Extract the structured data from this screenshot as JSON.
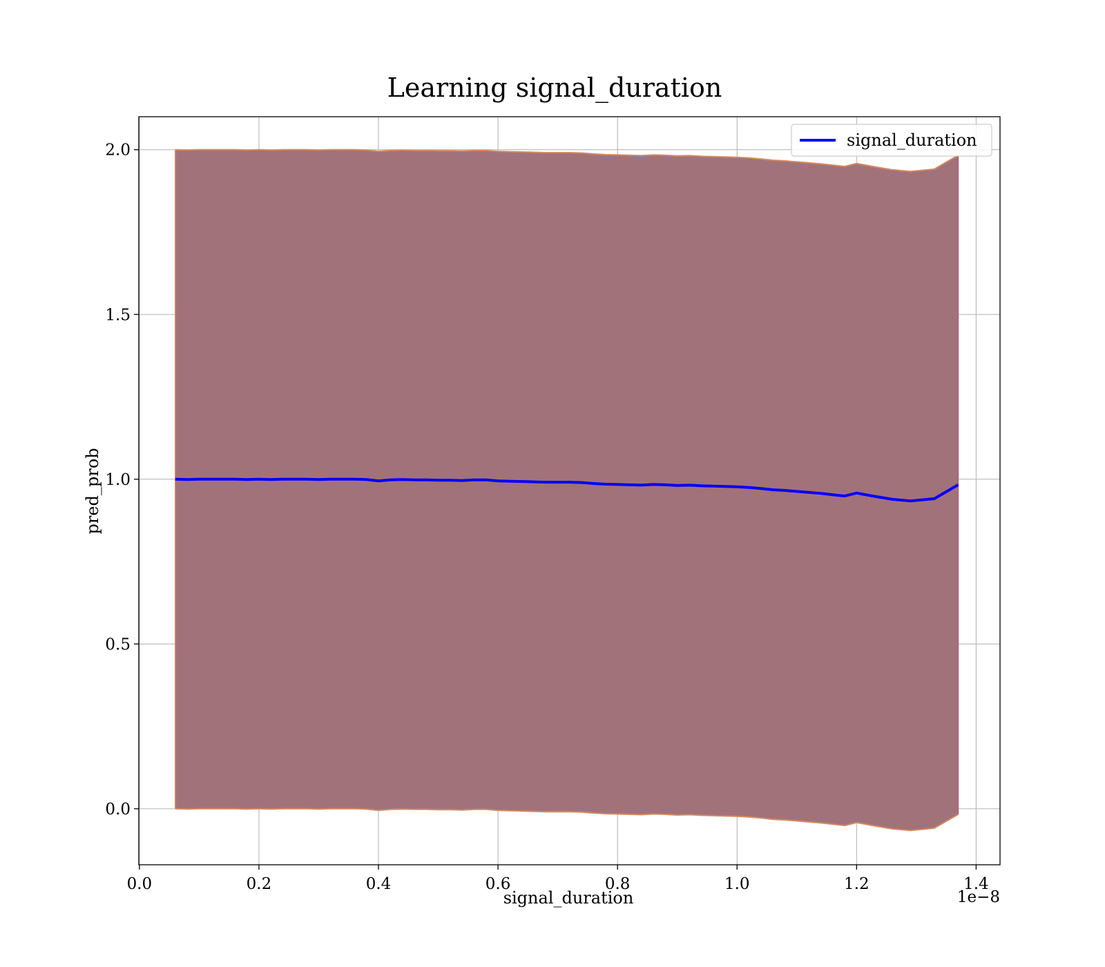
{
  "chart_data": {
    "type": "line",
    "title": "Learning signal_duration",
    "xlabel": "signal_duration",
    "ylabel": "pred_prob",
    "x_offset_label": "1e−8",
    "xlim": [
      -1e-11,
      1.44e-08
    ],
    "ylim": [
      -0.17,
      2.1
    ],
    "x_ticks": [
      0.0,
      0.2,
      0.4,
      0.6,
      0.8,
      1.0,
      1.2,
      1.4
    ],
    "x_tick_labels": [
      "0.0",
      "0.2",
      "0.4",
      "0.6",
      "0.8",
      "1.0",
      "1.2",
      "1.4"
    ],
    "y_ticks": [
      0.0,
      0.5,
      1.0,
      1.5,
      2.0
    ],
    "y_tick_labels": [
      "0.0",
      "0.5",
      "1.0",
      "1.5",
      "2.0"
    ],
    "grid": true,
    "legend_position": "top-right",
    "colors": {
      "line": "#0000ff",
      "band_fill": "#a2727a",
      "band_edge": "#d28a63",
      "grid": "#b0b0b0"
    },
    "series": [
      {
        "name": "signal_duration",
        "x": [
          6e-10,
          8e-10,
          1e-09,
          1.2e-09,
          1.4e-09,
          1.6e-09,
          1.8e-09,
          2e-09,
          2.2e-09,
          2.4e-09,
          2.6e-09,
          2.8e-09,
          3e-09,
          3.2e-09,
          3.4e-09,
          3.6e-09,
          3.8e-09,
          4e-09,
          4.2e-09,
          4.4e-09,
          4.6e-09,
          4.8e-09,
          5e-09,
          5.2e-09,
          5.4e-09,
          5.6e-09,
          5.8e-09,
          6e-09,
          6.2e-09,
          6.4e-09,
          6.6e-09,
          6.8e-09,
          7e-09,
          7.2e-09,
          7.4e-09,
          7.6e-09,
          7.8e-09,
          8e-09,
          8.2e-09,
          8.4e-09,
          8.6e-09,
          8.8e-09,
          9e-09,
          9.2e-09,
          9.4e-09,
          9.6e-09,
          9.8e-09,
          1e-08,
          1.02e-08,
          1.04e-08,
          1.06e-08,
          1.08e-08,
          1.1e-08,
          1.12e-08,
          1.14e-08,
          1.16e-08,
          1.18e-08,
          1.2e-08,
          1.23e-08,
          1.26e-08,
          1.29e-08,
          1.33e-08,
          1.37e-08
        ],
        "y": [
          1.0,
          0.999,
          1.0,
          1.0,
          1.0,
          1.0,
          0.999,
          1.0,
          0.999,
          1.0,
          1.0,
          1.0,
          0.999,
          1.0,
          1.0,
          1.0,
          0.999,
          0.995,
          0.998,
          0.999,
          0.998,
          0.998,
          0.997,
          0.997,
          0.996,
          0.998,
          0.998,
          0.995,
          0.994,
          0.993,
          0.992,
          0.991,
          0.991,
          0.991,
          0.99,
          0.987,
          0.985,
          0.984,
          0.983,
          0.982,
          0.984,
          0.983,
          0.981,
          0.982,
          0.98,
          0.979,
          0.978,
          0.977,
          0.975,
          0.972,
          0.968,
          0.966,
          0.963,
          0.96,
          0.957,
          0.953,
          0.949,
          0.958,
          0.948,
          0.939,
          0.934,
          0.941,
          0.983
        ]
      }
    ],
    "band": {
      "x": [
        6e-10,
        8e-10,
        1e-09,
        1.2e-09,
        1.4e-09,
        1.6e-09,
        1.8e-09,
        2e-09,
        2.2e-09,
        2.4e-09,
        2.6e-09,
        2.8e-09,
        3e-09,
        3.2e-09,
        3.4e-09,
        3.6e-09,
        3.8e-09,
        4e-09,
        4.2e-09,
        4.4e-09,
        4.6e-09,
        4.8e-09,
        5e-09,
        5.2e-09,
        5.4e-09,
        5.6e-09,
        5.8e-09,
        6e-09,
        6.2e-09,
        6.4e-09,
        6.6e-09,
        6.8e-09,
        7e-09,
        7.2e-09,
        7.4e-09,
        7.6e-09,
        7.8e-09,
        8e-09,
        8.2e-09,
        8.4e-09,
        8.6e-09,
        8.8e-09,
        9e-09,
        9.2e-09,
        9.4e-09,
        9.6e-09,
        9.8e-09,
        1e-08,
        1.02e-08,
        1.04e-08,
        1.06e-08,
        1.08e-08,
        1.1e-08,
        1.12e-08,
        1.14e-08,
        1.16e-08,
        1.18e-08,
        1.2e-08,
        1.23e-08,
        1.26e-08,
        1.29e-08,
        1.33e-08,
        1.37e-08
      ],
      "upper": [
        2.0,
        1.999,
        2.0,
        2.0,
        2.0,
        2.0,
        1.999,
        2.0,
        1.999,
        2.0,
        2.0,
        2.0,
        1.999,
        2.0,
        2.0,
        2.0,
        1.999,
        1.995,
        1.998,
        1.999,
        1.998,
        1.998,
        1.997,
        1.997,
        1.996,
        1.998,
        1.998,
        1.995,
        1.994,
        1.993,
        1.992,
        1.991,
        1.991,
        1.991,
        1.99,
        1.987,
        1.985,
        1.984,
        1.983,
        1.982,
        1.984,
        1.983,
        1.981,
        1.982,
        1.98,
        1.979,
        1.978,
        1.977,
        1.975,
        1.972,
        1.968,
        1.966,
        1.963,
        1.96,
        1.957,
        1.953,
        1.949,
        1.958,
        1.948,
        1.939,
        1.934,
        1.941,
        1.983
      ],
      "lower": [
        0.0,
        -0.001,
        0.0,
        0.0,
        0.0,
        0.0,
        -0.001,
        0.0,
        -0.001,
        0.0,
        0.0,
        0.0,
        -0.001,
        0.0,
        0.0,
        0.0,
        -0.001,
        -0.005,
        -0.002,
        -0.001,
        -0.002,
        -0.002,
        -0.003,
        -0.003,
        -0.004,
        -0.002,
        -0.002,
        -0.005,
        -0.006,
        -0.007,
        -0.008,
        -0.009,
        -0.009,
        -0.009,
        -0.01,
        -0.013,
        -0.015,
        -0.016,
        -0.017,
        -0.018,
        -0.016,
        -0.017,
        -0.019,
        -0.018,
        -0.02,
        -0.021,
        -0.022,
        -0.023,
        -0.025,
        -0.028,
        -0.032,
        -0.034,
        -0.037,
        -0.04,
        -0.043,
        -0.047,
        -0.051,
        -0.042,
        -0.052,
        -0.061,
        -0.066,
        -0.059,
        -0.017
      ]
    }
  }
}
